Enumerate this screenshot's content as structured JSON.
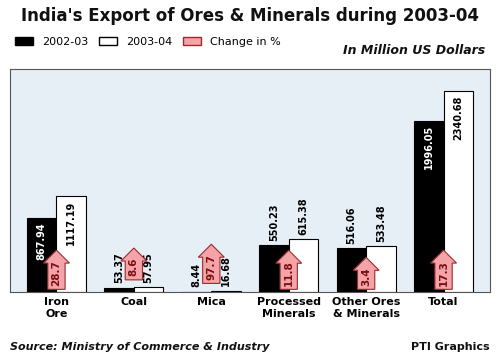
{
  "chart_data": {
    "type": "bar",
    "title": "India's Export of Ores & Minerals during 2003-04",
    "subtitle": "In Million US Dollars",
    "categories": [
      "Iron\nOre",
      "Coal",
      "Mica",
      "Processed\nMinerals",
      "Other Ores\n& Minerals",
      "Total"
    ],
    "series": [
      {
        "name": "2002-03",
        "color": "#000000",
        "values": [
          867.94,
          53.37,
          8.44,
          550.23,
          516.06,
          1996.05
        ]
      },
      {
        "name": "2003-04",
        "color": "#ffffff",
        "values": [
          1117.19,
          57.95,
          16.68,
          615.38,
          533.48,
          2340.68
        ]
      }
    ],
    "changes": {
      "name": "Change in %",
      "color": "#f4a3a8",
      "values": [
        28.7,
        8.6,
        97.7,
        11.8,
        3.4,
        17.3
      ]
    },
    "ylim": [
      0,
      2600
    ],
    "yticks": [],
    "tick_labels": "x",
    "data_labels": true,
    "legend": "upper left",
    "grid": false,
    "source": "Source: Ministry of Commerce & Industry",
    "credit": "PTI Graphics"
  }
}
